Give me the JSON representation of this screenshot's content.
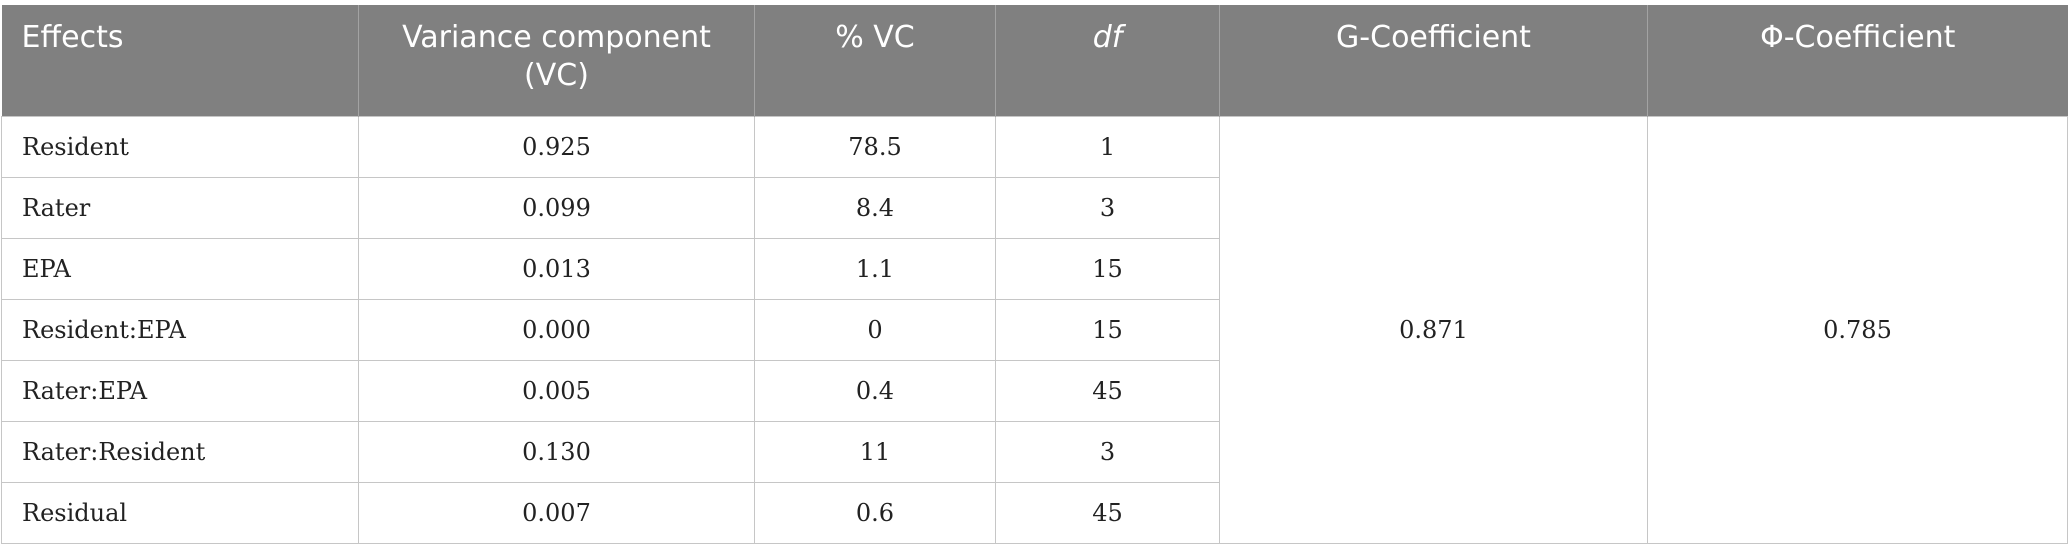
{
  "table": {
    "headers": [
      "Effects",
      "Variance component (VC)",
      "% VC",
      "df",
      "G-Coefficient",
      "Φ-Coefficient"
    ],
    "rows": [
      {
        "effect": "Resident",
        "vc": "0.925",
        "pct_vc": "78.5",
        "df": "1"
      },
      {
        "effect": "Rater",
        "vc": "0.099",
        "pct_vc": "8.4",
        "df": "3"
      },
      {
        "effect": "EPA",
        "vc": "0.013",
        "pct_vc": "1.1",
        "df": "15"
      },
      {
        "effect": "Resident:EPA",
        "vc": "0.000",
        "pct_vc": "0",
        "df": "15"
      },
      {
        "effect": "Rater:EPA",
        "vc": "0.005",
        "pct_vc": "0.4",
        "df": "45"
      },
      {
        "effect": "Rater:Resident",
        "vc": "0.130",
        "pct_vc": "11",
        "df": "3"
      },
      {
        "effect": "Residual",
        "vc": "0.007",
        "pct_vc": "0.6",
        "df": "45"
      }
    ],
    "g_coefficient": "0.871",
    "phi_coefficient": "0.785"
  },
  "colors": {
    "header_background": "#808080",
    "header_text": "#ffffff",
    "grid_line": "#c6c6c6"
  }
}
